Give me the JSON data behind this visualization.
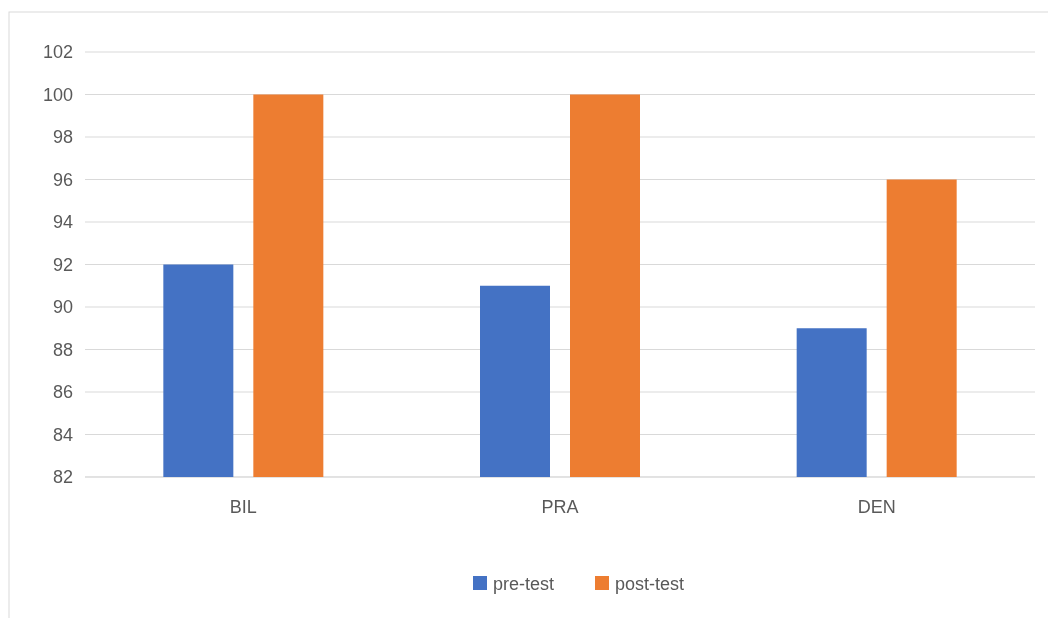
{
  "chart_data": {
    "type": "bar",
    "categories": [
      "BIL",
      "PRA",
      "DEN"
    ],
    "series": [
      {
        "name": "pre-test",
        "color": "#4472c4",
        "values": [
          92,
          91,
          89
        ]
      },
      {
        "name": "post-test",
        "color": "#ed7d31",
        "values": [
          100,
          100,
          96
        ]
      }
    ],
    "ylim": [
      82,
      102
    ],
    "yticks": [
      82,
      84,
      86,
      88,
      90,
      92,
      94,
      96,
      98,
      100,
      102
    ],
    "grid": "y",
    "legend": "bottom"
  }
}
